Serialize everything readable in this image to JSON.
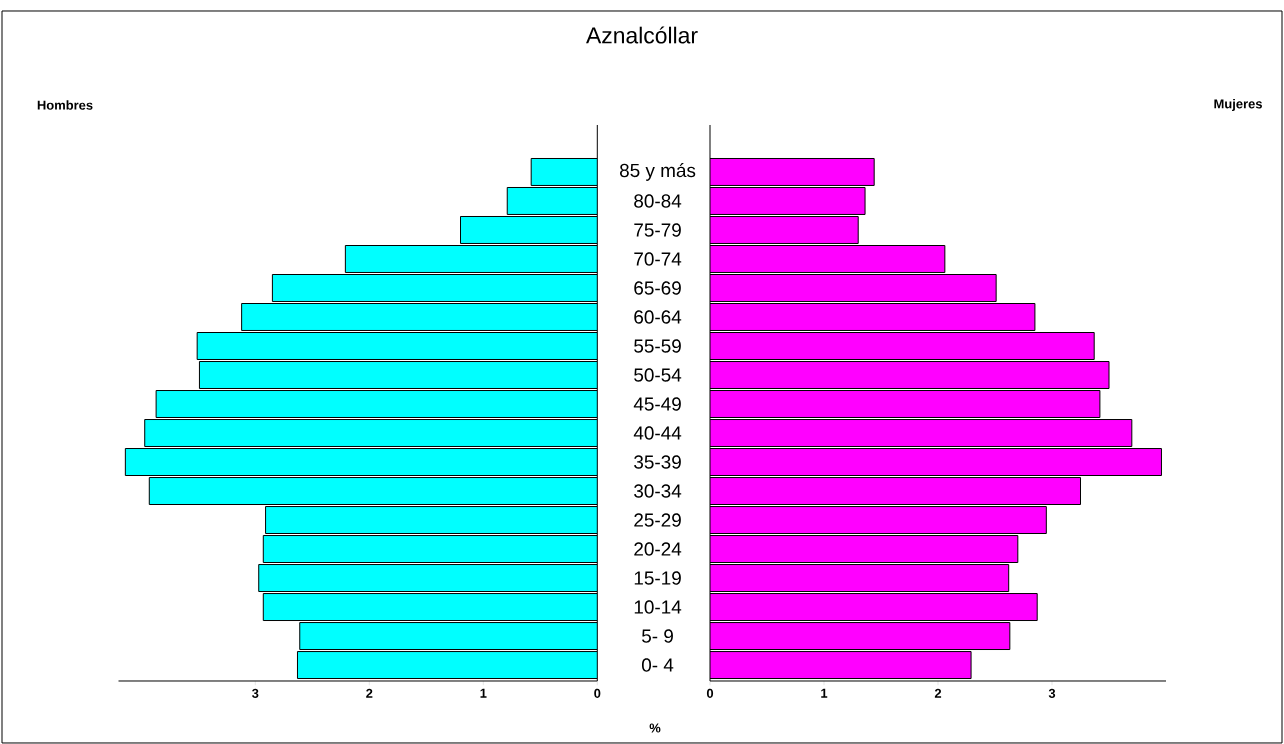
{
  "chart_data": [
    {
      "type": "bar",
      "orientation": "horizontal",
      "title": "Aznalcóllar",
      "annotations": [
        "Hombres"
      ],
      "xlabel": "%",
      "categories": [
        "85 y más",
        "80-84",
        "75-79",
        "70-74",
        "65-69",
        "60-64",
        "55-59",
        "50-54",
        "45-49",
        "40-44",
        "35-39",
        "30-34",
        "25-29",
        "20-24",
        "15-19",
        "10-14",
        "5- 9",
        "0- 4"
      ],
      "series": [
        {
          "color": "#00ffff",
          "values": [
            0.58,
            0.79,
            1.2,
            2.21,
            2.85,
            3.12,
            3.51,
            3.49,
            3.87,
            3.97,
            4.14,
            3.93,
            2.91,
            2.93,
            2.97,
            2.93,
            2.61,
            2.63
          ]
        }
      ],
      "xlim": [
        4.2,
        0
      ],
      "xticks": [
        0,
        1,
        2,
        3
      ]
    },
    {
      "type": "bar",
      "orientation": "horizontal",
      "annotations": [
        "Mujeres"
      ],
      "tick_labels": "x",
      "categories": [
        null,
        null,
        null,
        null,
        null,
        null,
        null,
        null,
        null,
        null,
        null,
        null,
        null,
        null,
        null,
        null,
        null,
        null
      ],
      "series": [
        {
          "color": "#ff00ff",
          "values": [
            1.44,
            1.36,
            1.3,
            2.06,
            2.51,
            2.85,
            3.37,
            3.5,
            3.42,
            3.7,
            3.96,
            3.25,
            2.95,
            2.7,
            2.62,
            2.87,
            2.63,
            2.29
          ]
        }
      ],
      "xlim": [
        0,
        4
      ],
      "xticks": [
        0,
        1,
        2,
        3
      ]
    }
  ]
}
